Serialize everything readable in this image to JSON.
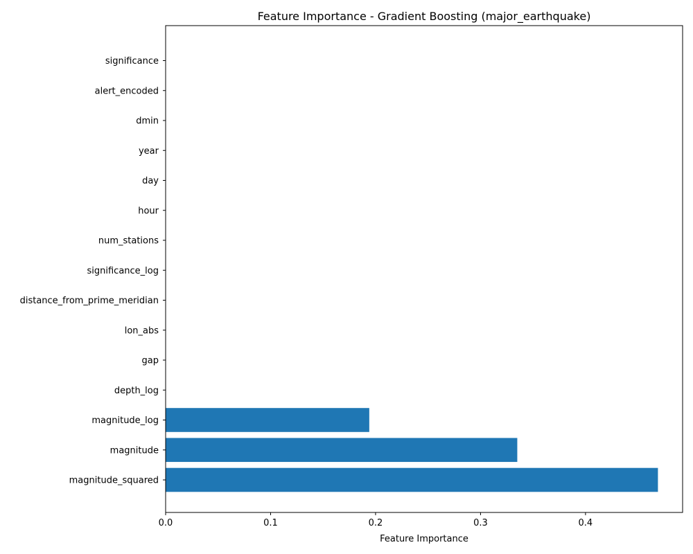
{
  "chart_data": {
    "type": "bar",
    "orientation": "horizontal",
    "title": "Feature Importance - Gradient Boosting (major_earthquake)",
    "xlabel": "Feature Importance",
    "ylabel": "",
    "xlim": [
      0,
      0.4925
    ],
    "xticks": [
      "0.0",
      "0.1",
      "0.2",
      "0.3",
      "0.4"
    ],
    "grid": false,
    "legend": "none",
    "bar_color": "#1f77b4",
    "categories": [
      "significance",
      "alert_encoded",
      "dmin",
      "year",
      "day",
      "hour",
      "num_stations",
      "significance_log",
      "distance_from_prime_meridian",
      "lon_abs",
      "gap",
      "depth_log",
      "magnitude_log",
      "magnitude",
      "magnitude_squared"
    ],
    "values": [
      0,
      0,
      0,
      0,
      0,
      0,
      0,
      0,
      0,
      0,
      0,
      0,
      0.194,
      0.335,
      0.469
    ]
  }
}
